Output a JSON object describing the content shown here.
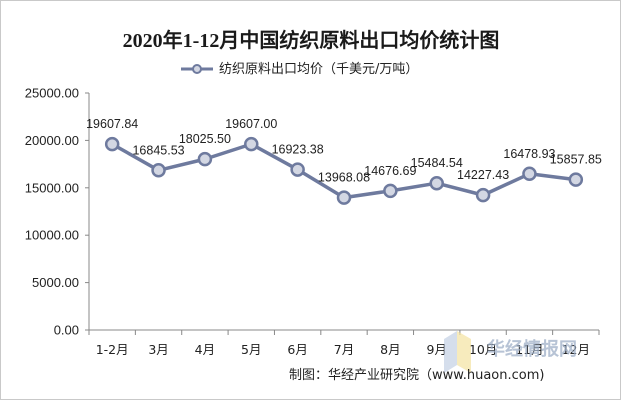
{
  "chart_data": {
    "type": "line",
    "title": "2020年1-12月中国纺织原料出口均价统计图",
    "categories": [
      "1-2月",
      "3月",
      "4月",
      "5月",
      "6月",
      "7月",
      "8月",
      "9月",
      "10月",
      "11月",
      "12月"
    ],
    "series": [
      {
        "name": "纺织原料出口均价（千美元/万吨）",
        "values": [
          19607.84,
          16845.53,
          18025.5,
          19607.0,
          16923.38,
          13968.08,
          14676.69,
          15484.54,
          14227.43,
          16478.93,
          15857.85
        ],
        "labels": [
          "19607.84",
          "16845.53",
          "18025.50",
          "19607.00",
          "16923.38",
          "13968.08",
          "14676.69",
          "15484.54",
          "14227.43",
          "16478.93",
          "15857.85"
        ]
      }
    ],
    "ylim": [
      0,
      25000
    ],
    "yticks": [
      "0.00",
      "5000.00",
      "10000.00",
      "15000.00",
      "20000.00",
      "25000.00"
    ],
    "grid": false,
    "legend_position": "top-center",
    "colors": {
      "line": "#6e7a9e",
      "marker_fill": "#d3d7e3",
      "axis": "#888888"
    }
  },
  "footer": {
    "source": "制图：华经产业研究院（www.huaon.com)",
    "watermark": "华经情报网"
  }
}
